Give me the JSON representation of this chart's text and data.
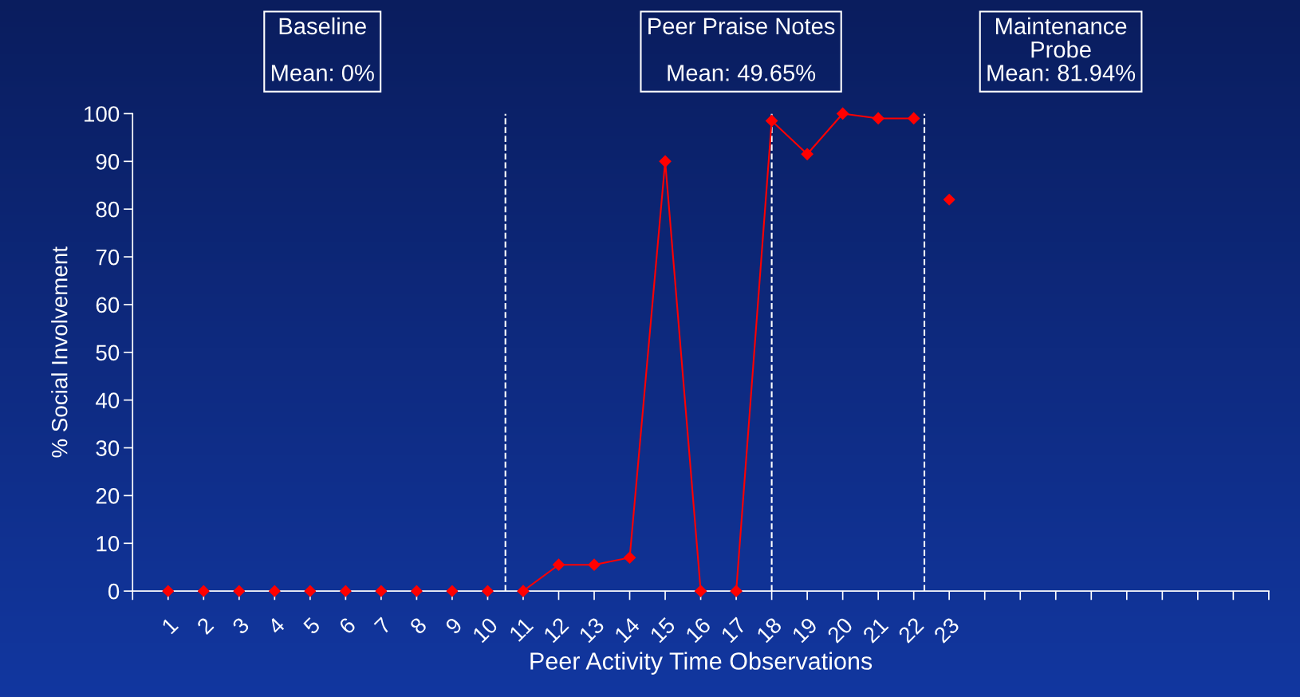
{
  "chart_data": {
    "type": "line",
    "xlabel": "Peer Activity Time Observations",
    "ylabel": "% Social Involvement",
    "annotations": [
      "Baseline\n\nMean: 0%",
      "Peer Praise Notes\n\nMean: 49.65%",
      "Maintenance\nProbe\nMean: 81.94%"
    ],
    "series": [
      {
        "type": "scatter",
        "color": "#ff0000",
        "x": [
          1,
          2,
          3,
          4,
          5,
          6,
          7,
          8,
          9,
          10
        ],
        "values": [
          0,
          0,
          0,
          0,
          0,
          0,
          0,
          0,
          0,
          0
        ]
      },
      {
        "color": "#ff0000",
        "x": [
          11,
          12,
          13,
          14,
          15,
          16
        ],
        "values": [
          0,
          5.5,
          5.5,
          7,
          90,
          0
        ]
      },
      {
        "color": "#ff0000",
        "x": [
          17,
          18,
          19,
          20,
          21,
          22
        ],
        "values": [
          0,
          98.5,
          91.5,
          100,
          99,
          99
        ]
      },
      {
        "type": "scatter",
        "color": "#ff0000",
        "x": [
          23
        ],
        "values": [
          82
        ]
      }
    ],
    "marker": "diamond",
    "line_style": "solid",
    "xlim": [
      0,
      32
    ],
    "xticks": [
      {
        "value": 0,
        "label": null
      },
      1,
      2,
      3,
      4,
      5,
      6,
      7,
      8,
      9,
      10,
      11,
      12,
      13,
      14,
      15,
      16,
      17,
      18,
      19,
      20,
      21,
      22,
      23,
      {
        "value": 24,
        "label": null
      },
      {
        "value": 25,
        "label": null
      },
      {
        "value": 26,
        "label": null
      },
      {
        "value": 27,
        "label": null
      },
      {
        "value": 28,
        "label": null
      },
      {
        "value": 29,
        "label": null
      },
      {
        "value": 30,
        "label": null
      },
      {
        "value": 31,
        "label": null
      },
      {
        "value": 32,
        "label": null
      }
    ],
    "ylim": [
      0,
      100
    ],
    "yticks": [
      0,
      10,
      20,
      30,
      40,
      50,
      60,
      70,
      80,
      90,
      100
    ],
    "ref_lines": [
      {
        "axis": "x",
        "value": 10.5,
        "color": "#ffffff",
        "line_style": "dashed"
      },
      {
        "axis": "x",
        "value": 18,
        "color": "#ffffff",
        "line_style": "dashed"
      },
      {
        "axis": "x",
        "value": 22.3,
        "color": "#ffffff",
        "line_style": "dashed"
      }
    ],
    "grid": false,
    "legend": false
  }
}
